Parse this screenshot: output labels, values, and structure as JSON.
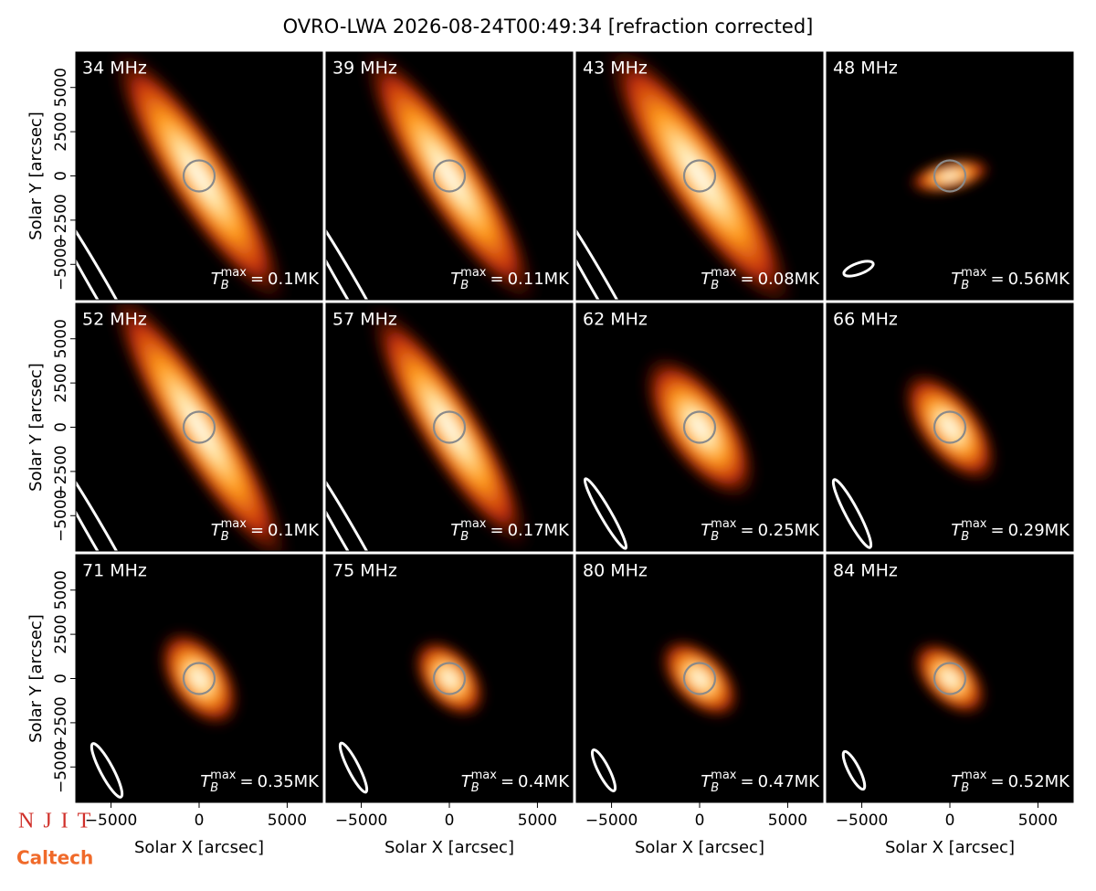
{
  "chart_data": {
    "type": "image-grid",
    "title": "OVRO-LWA 2026-08-24T00:49:34 [refraction corrected]",
    "xlabel": "Solar X [arcsec]",
    "ylabel": "Solar Y [arcsec]",
    "xlim": [
      -7000,
      7000
    ],
    "ylim": [
      -7000,
      7000
    ],
    "xticks": [
      {
        "value": -5000,
        "label": "−5000"
      },
      0,
      5000
    ],
    "yticks": [
      {
        "value": -5000,
        "label": "−5000"
      },
      {
        "value": -2500,
        "label": "−2500"
      },
      0,
      2500,
      5000
    ],
    "tmax_symbol": "T",
    "tmax_sub": "B",
    "tmax_sup": "max",
    "tmax_eq": "=",
    "panels": [
      "34 MHz",
      "39 MHz",
      "43 MHz",
      "48 MHz",
      "52 MHz",
      "57 MHz",
      "62 MHz",
      "66 MHz",
      "71 MHz",
      "75 MHz",
      "80 MHz",
      "84 MHz"
    ],
    "tmax": [
      0.1,
      0.11,
      0.08,
      0.56,
      0.1,
      0.17,
      0.25,
      0.29,
      0.35,
      0.4,
      0.47,
      0.52
    ],
    "tmax_labels": [
      "0.1MK",
      "0.11MK",
      "0.08MK",
      "0.56MK",
      "0.1MK",
      "0.17MK",
      "0.25MK",
      "0.29MK",
      "0.35MK",
      "0.4MK",
      "0.47MK",
      "0.52MK"
    ]
  },
  "logos": {
    "njit": "NJIT",
    "caltech": "Caltech"
  }
}
